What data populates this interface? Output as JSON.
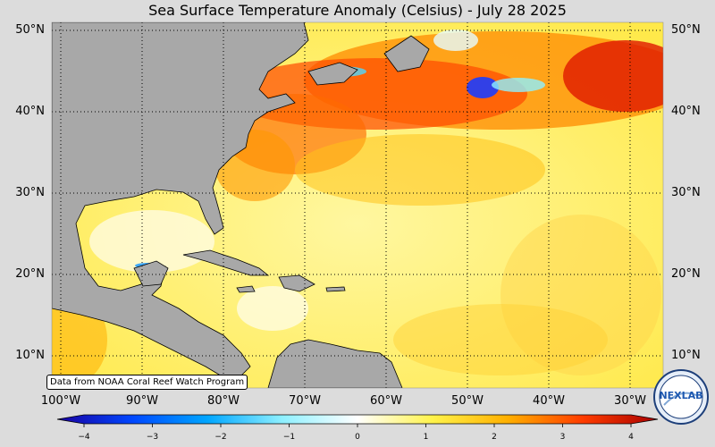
{
  "title": "Sea Surface Temperature Anomaly (Celsius) - July 28 2025",
  "source_note": "Data from NOAA Coral Reef Watch Program",
  "lat_labels": [
    "50°N",
    "40°N",
    "30°N",
    "20°N",
    "10°N"
  ],
  "lon_labels": [
    "100°W",
    "90°W",
    "80°W",
    "70°W",
    "60°W",
    "50°W",
    "40°W",
    "30°W"
  ],
  "colorbar": {
    "ticks": [
      "−4",
      "−3",
      "−2",
      "−1",
      "0",
      "1",
      "2",
      "3",
      "4"
    ],
    "range": [
      -4,
      4
    ],
    "colors": [
      "#1a00a0",
      "#0047ff",
      "#00a6ff",
      "#8ef0ff",
      "#ffffff",
      "#fff34a",
      "#ffb000",
      "#ff3c00",
      "#a80000"
    ]
  },
  "map": {
    "land_color": "#a8a8a8",
    "grid": "dotted",
    "lat_range": [
      6,
      51.5
    ],
    "lon_range": [
      -101,
      -26
    ]
  },
  "logo": {
    "text": "NEXLAB"
  }
}
